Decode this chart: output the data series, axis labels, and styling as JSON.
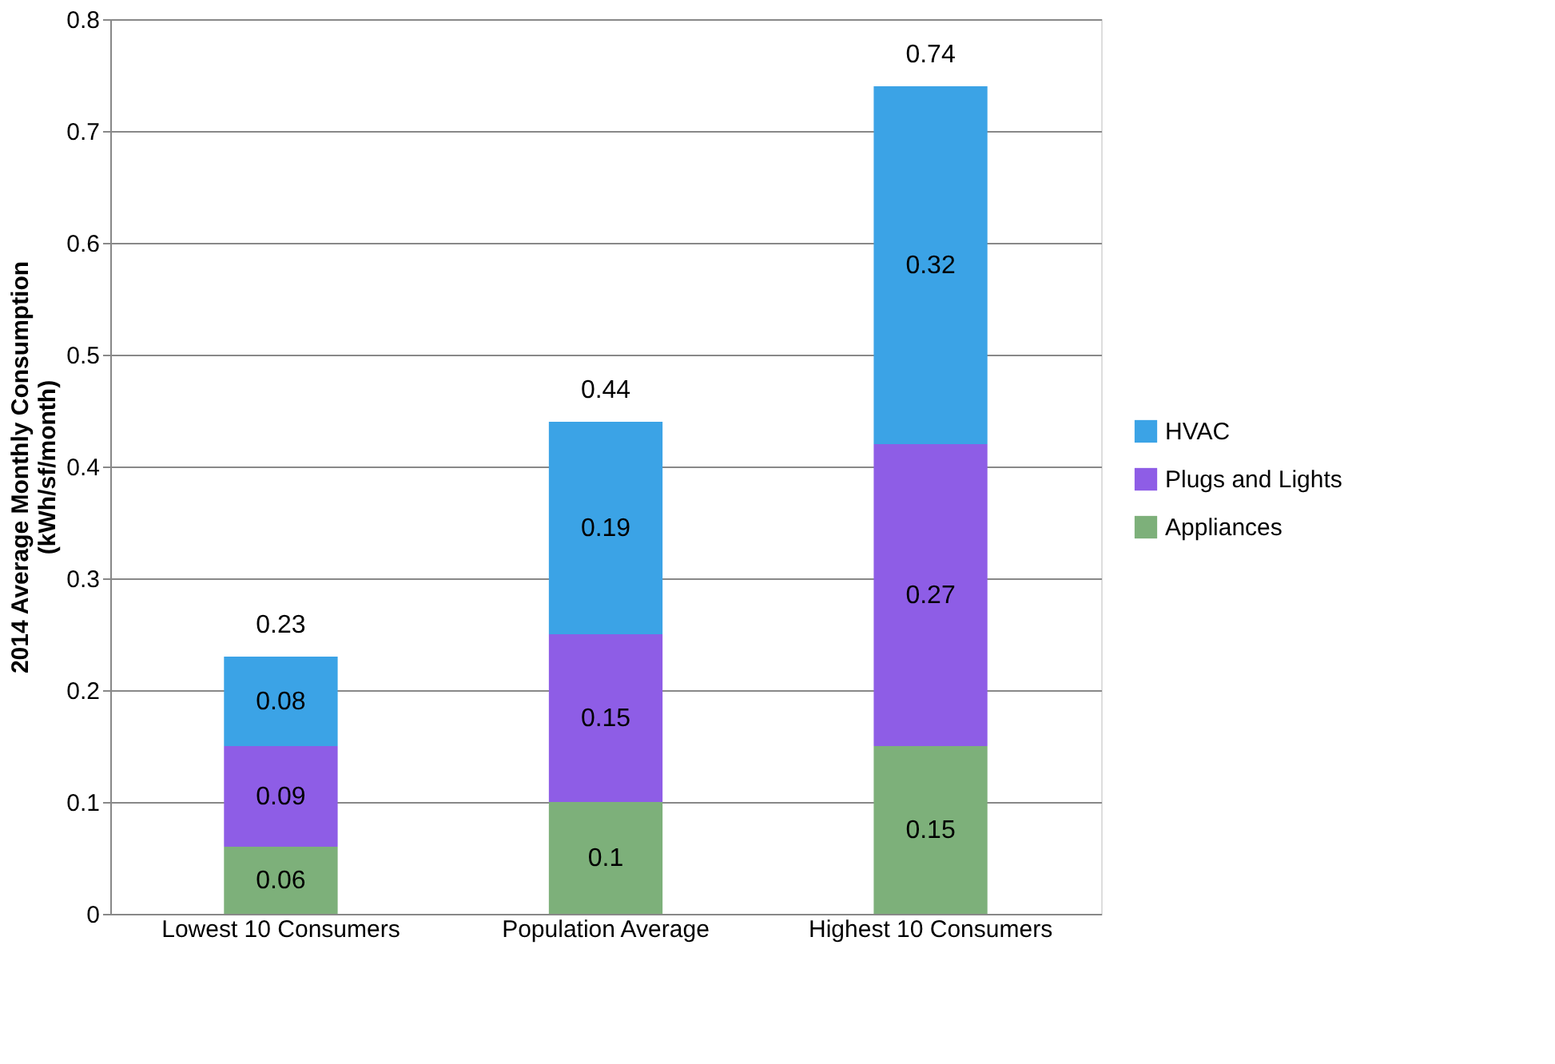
{
  "chart_data": {
    "type": "bar",
    "stacked": true,
    "categories": [
      "Lowest 10 Consumers",
      "Population Average",
      "Highest 10 Consumers"
    ],
    "ylabel": "2014 Average Monthly Consumption\n(kWh/sf/month)",
    "series": [
      {
        "name": "Appliances",
        "color": "#7db07a",
        "values": [
          0.06,
          0.1,
          0.15
        ]
      },
      {
        "name": "Plugs and Lights",
        "color": "#8e5de6",
        "values": [
          0.09,
          0.15,
          0.27
        ]
      },
      {
        "name": "HVAC",
        "color": "#3ba3e6",
        "values": [
          0.08,
          0.19,
          0.32
        ]
      }
    ],
    "totals": [
      "0.23",
      "0.44",
      "0.74"
    ],
    "data_labels": true,
    "ylim": [
      0,
      0.8
    ],
    "yticks": [
      0,
      0.1,
      0.2,
      0.3,
      0.4,
      0.5,
      0.6,
      0.7,
      0.8
    ],
    "grid": "y",
    "legend": "right"
  }
}
